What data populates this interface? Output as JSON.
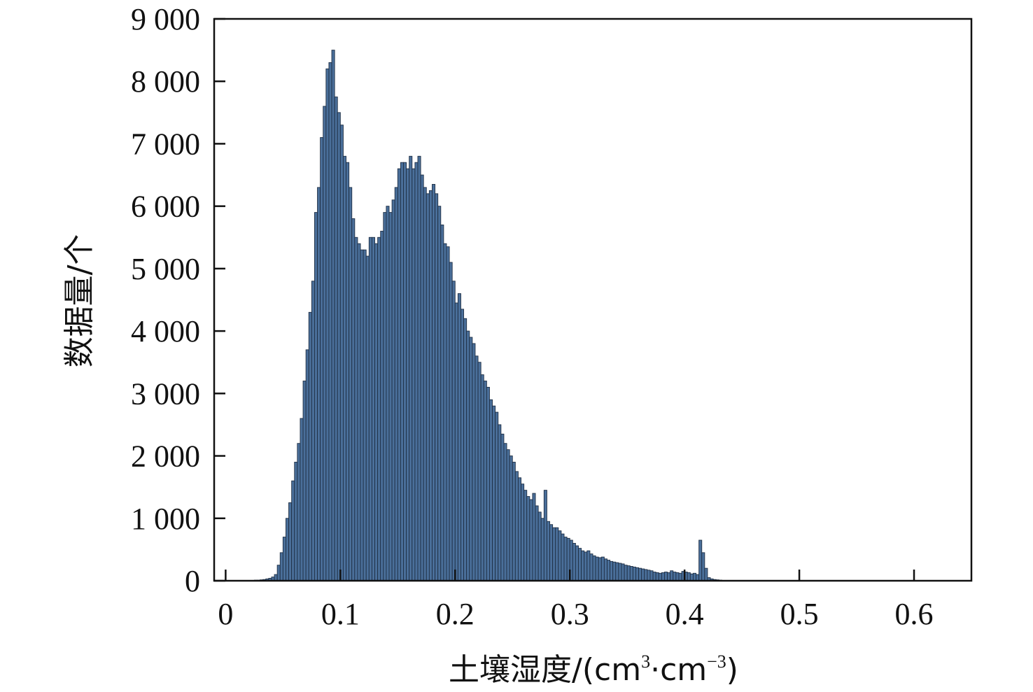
{
  "chart_data": {
    "type": "bar",
    "xlabel": "土壤湿度/(cm",
    "xlabel_sup1": "3",
    "xlabel_mid": "·cm",
    "xlabel_sup2": "−3",
    "xlabel_end": ")",
    "ylabel": "数据量/个",
    "xlim": [
      -0.01,
      0.65
    ],
    "ylim": [
      0,
      9000
    ],
    "xticks": [
      {
        "value": 0,
        "label": "0"
      },
      {
        "value": 0.1,
        "label": "0.1"
      },
      {
        "value": 0.2,
        "label": "0.2"
      },
      {
        "value": 0.3,
        "label": "0.3"
      },
      {
        "value": 0.4,
        "label": "0.4"
      },
      {
        "value": 0.5,
        "label": "0.5"
      },
      {
        "value": 0.6,
        "label": "0.6"
      }
    ],
    "yticks": [
      {
        "value": 0,
        "label": "0"
      },
      {
        "value": 1000,
        "label": "1 000"
      },
      {
        "value": 2000,
        "label": "2 000"
      },
      {
        "value": 3000,
        "label": "3 000"
      },
      {
        "value": 4000,
        "label": "4 000"
      },
      {
        "value": 5000,
        "label": "5 000"
      },
      {
        "value": 6000,
        "label": "6 000"
      },
      {
        "value": 7000,
        "label": "7 000"
      },
      {
        "value": 8000,
        "label": "8 000"
      },
      {
        "value": 9000,
        "label": "9 000"
      }
    ],
    "bin_start": 0.0,
    "bin_width": 0.0025,
    "values": [
      0,
      0,
      0,
      0,
      0,
      0,
      0,
      0,
      0,
      0,
      10,
      10,
      15,
      20,
      30,
      40,
      60,
      100,
      250,
      450,
      700,
      1000,
      1250,
      1600,
      1900,
      2200,
      2600,
      3200,
      3700,
      4300,
      4800,
      5900,
      6300,
      7100,
      7600,
      8200,
      8300,
      8500,
      7750,
      7500,
      7300,
      6800,
      6700,
      6300,
      5800,
      5500,
      5400,
      5300,
      5300,
      5200,
      5500,
      5500,
      5400,
      5500,
      5600,
      5900,
      6000,
      5900,
      6100,
      6300,
      6600,
      6700,
      6700,
      6600,
      6800,
      6600,
      6700,
      6800,
      6500,
      6300,
      6200,
      6250,
      6350,
      6200,
      6000,
      5700,
      5400,
      5350,
      5100,
      4800,
      4450,
      4600,
      4350,
      4200,
      4000,
      3900,
      3800,
      3600,
      3500,
      3300,
      3200,
      3100,
      2900,
      2800,
      2700,
      2500,
      2350,
      2200,
      2100,
      2000,
      1900,
      1750,
      1650,
      1550,
      1450,
      1350,
      1300,
      1400,
      1200,
      1100,
      1000,
      1450,
      950,
      900,
      850,
      850,
      800,
      750,
      700,
      680,
      650,
      600,
      560,
      520,
      480,
      460,
      480,
      430,
      400,
      380,
      370,
      380,
      350,
      330,
      310,
      300,
      290,
      280,
      270,
      250,
      240,
      230,
      220,
      210,
      200,
      190,
      180,
      170,
      160,
      140,
      130,
      120,
      130,
      140,
      130,
      160,
      140,
      130,
      120,
      150,
      140,
      130,
      110,
      120,
      100,
      650,
      450,
      200,
      50,
      30,
      20,
      15,
      10,
      5,
      5,
      5,
      0,
      0,
      0,
      0,
      0,
      0,
      0,
      0,
      0
    ]
  }
}
